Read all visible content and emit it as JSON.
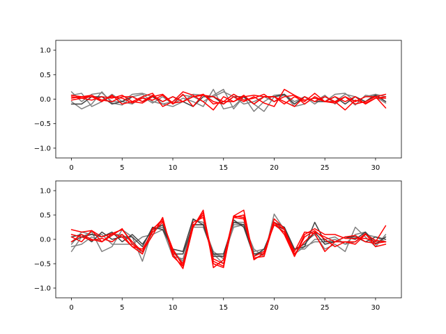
{
  "chart_data": [
    {
      "type": "line",
      "xlim": [
        -1.55,
        32.55
      ],
      "ylim": [
        -1.2,
        1.2
      ],
      "xticks": [
        0,
        5,
        10,
        15,
        20,
        25,
        30
      ],
      "yticks": [
        -1.0,
        -0.5,
        0.0,
        0.5,
        1.0
      ],
      "xtick_labels": [
        "0",
        "5",
        "10",
        "15",
        "20",
        "25",
        "30"
      ],
      "ytick_labels": [
        "−1.0",
        "−0.5",
        "0.0",
        "0.5",
        "1.0"
      ],
      "x": [
        0,
        1,
        2,
        3,
        4,
        5,
        6,
        7,
        8,
        9,
        10,
        11,
        12,
        13,
        14,
        15,
        16,
        17,
        18,
        19,
        20,
        21,
        22,
        23,
        24,
        25,
        26,
        27,
        28,
        29,
        30,
        31
      ],
      "series": [
        {
          "color": "#808080",
          "values": [
            0.15,
            -0.05,
            0.1,
            0.13,
            -0.05,
            -0.05,
            0.1,
            0.12,
            0.05,
            -0.1,
            -0.05,
            0.08,
            0.05,
            -0.05,
            0.08,
            0.2,
            -0.2,
            0.05,
            -0.25,
            -0.05,
            0.08,
            0.1,
            -0.05,
            0.05,
            -0.1,
            0.05,
            -0.05,
            0.1,
            0.05,
            -0.05,
            0.1,
            0.05
          ]
        },
        {
          "color": "#808080",
          "values": [
            -0.05,
            -0.2,
            -0.1,
            0.15,
            -0.08,
            -0.12,
            0.05,
            0.1,
            -0.05,
            -0.1,
            -0.15,
            -0.05,
            0.1,
            0.08,
            0.05,
            0.15,
            0.05,
            -0.1,
            -0.05,
            0.05,
            -0.05,
            0.1,
            -0.15,
            -0.1,
            0.05,
            -0.05,
            0.1,
            0.12,
            -0.05,
            0.05,
            0.1,
            -0.05
          ]
        },
        {
          "color": "#808080",
          "values": [
            0.08,
            0.12,
            -0.15,
            -0.05,
            0.1,
            -0.05,
            -0.1,
            0.05,
            -0.08,
            0.05,
            -0.1,
            0.02,
            -0.05,
            -0.15,
            0.2,
            -0.2,
            -0.15,
            0.05,
            -0.1,
            -0.25,
            0.05,
            0.08,
            -0.1,
            0.05,
            -0.05,
            0.08,
            -0.1,
            0.05,
            -0.12,
            0.08,
            0.05,
            -0.08
          ]
        },
        {
          "color": "#404040",
          "values": [
            -0.1,
            -0.1,
            0.05,
            0.05,
            -0.1,
            -0.05,
            0.05,
            -0.05,
            0.05,
            -0.05,
            0.05,
            -0.05,
            -0.15,
            0.05,
            0.05,
            -0.1,
            0.05,
            0.05,
            -0.1,
            0.05,
            0.05,
            0.1,
            -0.1,
            0.05,
            -0.05,
            -0.05,
            0.05,
            -0.1,
            0.05,
            -0.05,
            0.08,
            -0.05
          ]
        },
        {
          "color": "#ff0000",
          "values": [
            0.02,
            0.05,
            0.05,
            -0.05,
            0.08,
            -0.1,
            -0.05,
            0.05,
            0.12,
            -0.15,
            -0.05,
            0.15,
            0.08,
            -0.05,
            -0.22,
            0.05,
            -0.05,
            0.08,
            -0.1,
            0.05,
            0.05,
            -0.1,
            0.05,
            -0.05,
            0.12,
            -0.05,
            -0.08,
            0.05,
            -0.1,
            -0.05,
            0.05,
            0.1
          ]
        },
        {
          "color": "#ff0000",
          "values": [
            0.05,
            0.02,
            -0.02,
            0.05,
            0.02,
            0.08,
            -0.05,
            -0.08,
            0.05,
            0.1,
            -0.08,
            -0.05,
            0.05,
            0.1,
            -0.05,
            -0.1,
            0.05,
            -0.05,
            0.05,
            -0.08,
            -0.15,
            0.2,
            0.08,
            -0.1,
            0.05,
            -0.05,
            0.05,
            -0.05,
            0.05,
            -0.1,
            0.02,
            0.05
          ]
        },
        {
          "color": "#ff0000",
          "values": [
            0.08,
            0.05,
            0.08,
            -0.02,
            -0.05,
            0.05,
            0.05,
            -0.05,
            0.08,
            -0.05,
            0.05,
            -0.05,
            0.05,
            0.08,
            0.05,
            -0.05,
            -0.05,
            0.05,
            0.08,
            0.05,
            0.05,
            -0.05,
            -0.15,
            0.05,
            -0.05,
            0.05,
            -0.05,
            0.05,
            -0.05,
            0.05,
            0.05,
            -0.18
          ]
        },
        {
          "color": "#ff0000",
          "values": [
            -0.02,
            0.02,
            0.05,
            -0.02,
            0.05,
            0.02,
            -0.08,
            0.02,
            -0.02,
            0.08,
            -0.1,
            0.1,
            -0.15,
            0.1,
            -0.1,
            -0.05,
            0.1,
            -0.02,
            0.02,
            0.1,
            -0.05,
            0.05,
            0.08,
            -0.02,
            0.02,
            -0.05,
            -0.05,
            -0.22,
            -0.02,
            -0.08,
            0.02,
            0.02
          ]
        }
      ]
    },
    {
      "type": "line",
      "xlim": [
        -1.55,
        32.55
      ],
      "ylim": [
        -1.2,
        1.2
      ],
      "xticks": [
        0,
        5,
        10,
        15,
        20,
        25,
        30
      ],
      "yticks": [
        -1.0,
        -0.5,
        0.0,
        0.5,
        1.0
      ],
      "xtick_labels": [
        "0",
        "5",
        "10",
        "15",
        "20",
        "25",
        "30"
      ],
      "ytick_labels": [
        "−1.0",
        "−0.5",
        "0.0",
        "0.5",
        "1.0"
      ],
      "x": [
        0,
        1,
        2,
        3,
        4,
        5,
        6,
        7,
        8,
        9,
        10,
        11,
        12,
        13,
        14,
        15,
        16,
        17,
        18,
        19,
        20,
        21,
        22,
        23,
        24,
        25,
        26,
        27,
        28,
        29,
        30,
        31
      ],
      "series": [
        {
          "color": "#808080",
          "values": [
            -0.25,
            0.05,
            0.15,
            -0.25,
            -0.15,
            0.2,
            0.05,
            -0.45,
            0.2,
            0.25,
            -0.2,
            -0.5,
            0.3,
            0.3,
            -0.25,
            -0.4,
            0.3,
            0.3,
            -0.2,
            -0.35,
            0.52,
            0.2,
            -0.3,
            -0.05,
            0.1,
            -0.2,
            -0.1,
            -0.25,
            0.25,
            0.05,
            -0.15,
            0.1
          ]
        },
        {
          "color": "#808080",
          "values": [
            -0.15,
            -0.1,
            0.05,
            -0.05,
            0.1,
            0.1,
            -0.05,
            -0.3,
            0.15,
            0.3,
            -0.25,
            -0.45,
            0.4,
            0.35,
            -0.3,
            -0.5,
            0.35,
            0.35,
            -0.3,
            -0.25,
            0.35,
            0.25,
            -0.2,
            -0.2,
            0,
            0,
            0.05,
            -0.1,
            0.1,
            0.15,
            -0.05,
            -0.05
          ]
        },
        {
          "color": "#808080",
          "values": [
            -0.1,
            0.15,
            0.1,
            0.1,
            -0.1,
            -0.1,
            -0.1,
            0.05,
            0.1,
            0.2,
            -0.35,
            -0.4,
            0.25,
            0.25,
            -0.3,
            -0.35,
            0.25,
            0.3,
            -0.25,
            -0.2,
            0.3,
            0.15,
            -0.3,
            -0.15,
            -0.05,
            -0.05,
            0,
            -0.1,
            -0.05,
            0.1,
            0.05,
            -0.05
          ]
        },
        {
          "color": "#404040",
          "values": [
            0.05,
            0.1,
            -0.05,
            0.15,
            0,
            0.05,
            0.05,
            -0.15,
            0.25,
            0.2,
            -0.2,
            -0.25,
            0.42,
            0.3,
            -0.35,
            -0.35,
            0.4,
            0.25,
            -0.35,
            -0.2,
            0.3,
            0.2,
            -0.2,
            -0.15,
            0.35,
            -0.05,
            -0.05,
            0.05,
            0,
            0.15,
            -0.1,
            0.05
          ]
        },
        {
          "color": "#404040",
          "values": [
            -0.05,
            0.05,
            0.1,
            0.05,
            0.15,
            -0.05,
            0.1,
            -0.1,
            0.2,
            0.3,
            -0.3,
            -0.3,
            0.3,
            0.3,
            -0.3,
            -0.3,
            0.35,
            0.3,
            -0.3,
            -0.3,
            0.35,
            0.25,
            -0.2,
            -0.1,
            0.15,
            -0.1,
            -0.05,
            0.05,
            0.05,
            -0.05,
            0.05,
            0
          ]
        },
        {
          "color": "#ff0000",
          "values": [
            0.2,
            0.15,
            0.18,
            0.05,
            0.12,
            0.2,
            -0.05,
            -0.25,
            0.2,
            0.42,
            -0.3,
            -0.6,
            0.25,
            0.6,
            -0.58,
            -0.42,
            0.48,
            0.6,
            -0.42,
            -0.28,
            0.35,
            0.1,
            -0.35,
            0.1,
            0.22,
            0.1,
            0.1,
            0.02,
            0.02,
            0.02,
            -0.05,
            0.28
          ]
        },
        {
          "color": "#ff0000",
          "values": [
            0.05,
            -0.05,
            0.18,
            -0.05,
            0.08,
            0.22,
            -0.1,
            -0.25,
            0.08,
            0.45,
            -0.35,
            -0.55,
            0.35,
            0.45,
            -0.5,
            -0.58,
            0.48,
            0.45,
            -0.38,
            -0.35,
            0.35,
            0.2,
            -0.25,
            0.15,
            0.12,
            -0.25,
            -0.05,
            -0.05,
            -0.1,
            0.1,
            -0.02,
            -0.05
          ]
        },
        {
          "color": "#ff0000",
          "values": [
            -0.05,
            0.1,
            0,
            -0.05,
            0.12,
            0.05,
            -0.15,
            -0.3,
            0.22,
            0.38,
            -0.25,
            -0.5,
            0.28,
            0.5,
            -0.4,
            -0.5,
            0.45,
            0.5,
            -0.35,
            -0.25,
            0.3,
            0.15,
            -0.3,
            -0.05,
            0.15,
            0.05,
            -0.05,
            0.05,
            0.08,
            -0.05,
            -0.08,
            -0.05
          ]
        },
        {
          "color": "#ff0000",
          "values": [
            0.1,
            0.05,
            -0.02,
            0.02,
            -0.05,
            0.1,
            -0.15,
            -0.2,
            0.15,
            0.35,
            -0.2,
            -0.55,
            0.25,
            0.55,
            -0.45,
            -0.55,
            0.45,
            0.42,
            -0.4,
            -0.3,
            0.42,
            0.22,
            -0.35,
            0.05,
            0.18,
            0,
            -0.15,
            -0.05,
            -0.05,
            0.12,
            -0.15,
            -0.1
          ]
        }
      ]
    }
  ]
}
